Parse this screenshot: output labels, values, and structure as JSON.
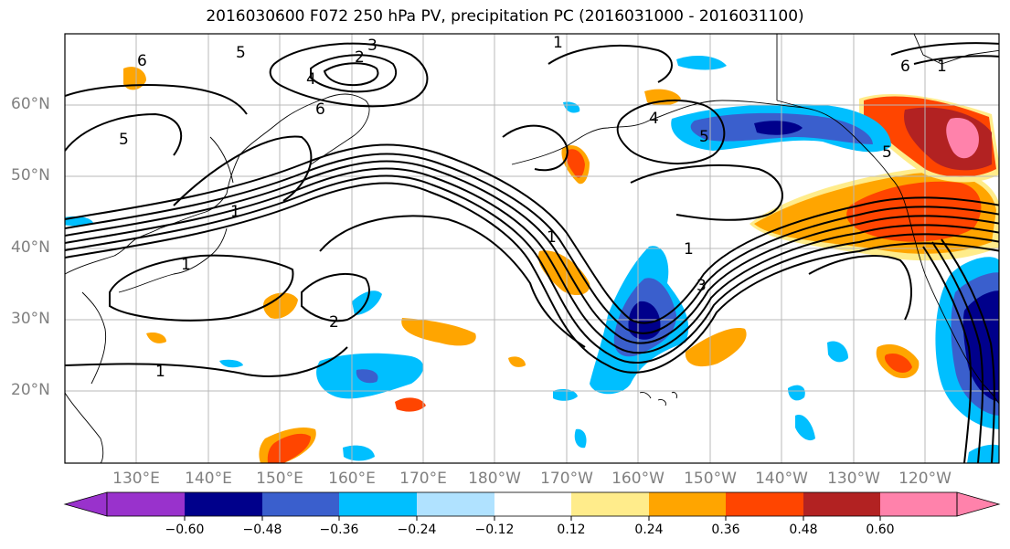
{
  "title": "2016030600 F072 250 hPa PV, precipitation PC (2016031000 - 2016031100)",
  "lat_labels": [
    "60°N",
    "50°N",
    "40°N",
    "30°N",
    "20°N"
  ],
  "lon_labels": [
    "130°E",
    "140°E",
    "150°E",
    "160°E",
    "170°E",
    "180°W",
    "170°W",
    "160°W",
    "150°W",
    "140°W",
    "130°W",
    "120°W"
  ],
  "colorbar": {
    "ticks": [
      "−0.60",
      "−0.48",
      "−0.36",
      "−0.24",
      "−0.12",
      "0.12",
      "0.24",
      "0.36",
      "0.48",
      "0.60"
    ],
    "colors": [
      "#9932cc",
      "#00008b",
      "#3a5fcd",
      "#00bfff",
      "#b0e2ff",
      "#ffffff",
      "#ffec8b",
      "#ffa500",
      "#ff4500",
      "#b22222",
      "#ff82ab"
    ]
  },
  "contour_labels": [
    "1",
    "2",
    "3",
    "4",
    "5",
    "6"
  ]
}
